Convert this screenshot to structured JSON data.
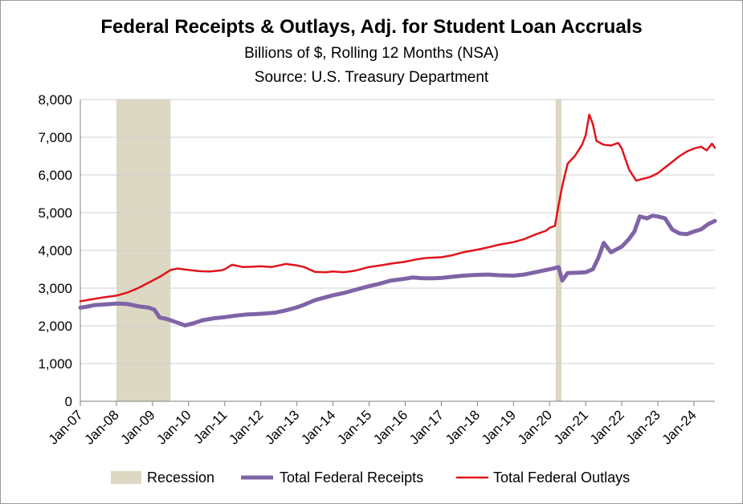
{
  "chart_data": {
    "type": "line",
    "title": "Federal Receipts & Outlays, Adj. for Student Loan Accruals",
    "subtitle": "Billions of $, Rolling 12 Months (NSA)",
    "source": "Source:  U.S. Treasury Department",
    "ylim": [
      0,
      8000
    ],
    "y_ticks": [
      0,
      1000,
      2000,
      3000,
      4000,
      5000,
      6000,
      7000,
      8000
    ],
    "y_tick_labels": [
      "0",
      "1,000",
      "2,000",
      "3,000",
      "4,000",
      "5,000",
      "6,000",
      "7,000",
      "8,000"
    ],
    "x_ticks": [
      "Jan-07",
      "Jan-08",
      "Jan-09",
      "Jan-10",
      "Jan-11",
      "Jan-12",
      "Jan-13",
      "Jan-14",
      "Jan-15",
      "Jan-16",
      "Jan-17",
      "Jan-18",
      "Jan-19",
      "Jan-20",
      "Jan-21",
      "Jan-22",
      "Jan-23",
      "Jan-24"
    ],
    "xlim": [
      2007.0,
      2024.58
    ],
    "grid": true,
    "legend_position": "bottom",
    "recessions": [
      {
        "start": 2008.0,
        "end": 2009.5
      },
      {
        "start": 2020.17,
        "end": 2020.33
      }
    ],
    "legend": {
      "recession": "Recession",
      "receipts": "Total Federal Receipts",
      "outlays": "Total Federal Outlays"
    },
    "colors": {
      "receipts": "#7f63a6",
      "outlays": "#e2131b",
      "recession": "#dcd8c4",
      "grid": "#d0d0d0"
    },
    "series": [
      {
        "name": "Total Federal Receipts",
        "x": [
          2007.0,
          2007.2,
          2007.4,
          2007.7,
          2008.0,
          2008.3,
          2008.6,
          2008.9,
          2009.05,
          2009.2,
          2009.4,
          2009.7,
          2009.9,
          2010.1,
          2010.4,
          2010.7,
          2011.0,
          2011.3,
          2011.6,
          2012.0,
          2012.4,
          2012.7,
          2013.0,
          2013.2,
          2013.5,
          2013.8,
          2014.0,
          2014.3,
          2014.6,
          2015.0,
          2015.3,
          2015.6,
          2016.0,
          2016.2,
          2016.5,
          2016.8,
          2017.0,
          2017.3,
          2017.6,
          2018.0,
          2018.3,
          2018.6,
          2019.0,
          2019.3,
          2019.6,
          2019.9,
          2020.1,
          2020.25,
          2020.35,
          2020.5,
          2020.8,
          2021.0,
          2021.2,
          2021.35,
          2021.5,
          2021.7,
          2021.9,
          2022.0,
          2022.2,
          2022.35,
          2022.5,
          2022.7,
          2022.85,
          2023.0,
          2023.2,
          2023.4,
          2023.6,
          2023.8,
          2024.0,
          2024.2,
          2024.4,
          2024.58
        ],
        "values": [
          2480,
          2510,
          2550,
          2570,
          2590,
          2580,
          2520,
          2480,
          2430,
          2220,
          2180,
          2080,
          2010,
          2060,
          2150,
          2200,
          2230,
          2270,
          2300,
          2320,
          2350,
          2410,
          2490,
          2560,
          2680,
          2760,
          2810,
          2870,
          2950,
          3050,
          3120,
          3200,
          3250,
          3280,
          3260,
          3260,
          3270,
          3300,
          3330,
          3350,
          3360,
          3340,
          3330,
          3360,
          3420,
          3480,
          3520,
          3560,
          3200,
          3400,
          3410,
          3420,
          3500,
          3800,
          4200,
          3950,
          4050,
          4100,
          4300,
          4500,
          4900,
          4850,
          4920,
          4900,
          4850,
          4550,
          4450,
          4430,
          4500,
          4560,
          4700,
          4780
        ]
      },
      {
        "name": "Total Federal Outlays",
        "x": [
          2007.0,
          2007.3,
          2007.6,
          2008.0,
          2008.3,
          2008.6,
          2008.9,
          2009.2,
          2009.5,
          2009.7,
          2010.0,
          2010.3,
          2010.6,
          2010.9,
          2011.0,
          2011.2,
          2011.5,
          2011.8,
          2012.0,
          2012.3,
          2012.5,
          2012.7,
          2013.0,
          2013.2,
          2013.5,
          2013.8,
          2014.0,
          2014.3,
          2014.6,
          2015.0,
          2015.3,
          2015.6,
          2016.0,
          2016.3,
          2016.6,
          2017.0,
          2017.3,
          2017.6,
          2018.0,
          2018.3,
          2018.6,
          2019.0,
          2019.3,
          2019.6,
          2019.9,
          2020.0,
          2020.15,
          2020.25,
          2020.35,
          2020.5,
          2020.7,
          2020.9,
          2021.0,
          2021.1,
          2021.2,
          2021.3,
          2021.5,
          2021.7,
          2021.9,
          2022.0,
          2022.2,
          2022.4,
          2022.6,
          2022.8,
          2023.0,
          2023.2,
          2023.4,
          2023.6,
          2023.8,
          2024.0,
          2024.2,
          2024.35,
          2024.5,
          2024.58
        ],
        "values": [
          2650,
          2700,
          2750,
          2800,
          2880,
          3000,
          3150,
          3300,
          3480,
          3520,
          3480,
          3450,
          3440,
          3470,
          3500,
          3620,
          3560,
          3570,
          3580,
          3560,
          3600,
          3640,
          3600,
          3560,
          3430,
          3420,
          3440,
          3420,
          3460,
          3560,
          3600,
          3650,
          3700,
          3760,
          3800,
          3820,
          3870,
          3950,
          4020,
          4080,
          4150,
          4220,
          4300,
          4420,
          4520,
          4600,
          4650,
          5200,
          5700,
          6300,
          6500,
          6800,
          7050,
          7600,
          7350,
          6900,
          6800,
          6780,
          6850,
          6700,
          6150,
          5850,
          5900,
          5950,
          6050,
          6200,
          6350,
          6500,
          6620,
          6700,
          6750,
          6650,
          6830,
          6720
        ]
      }
    ]
  }
}
